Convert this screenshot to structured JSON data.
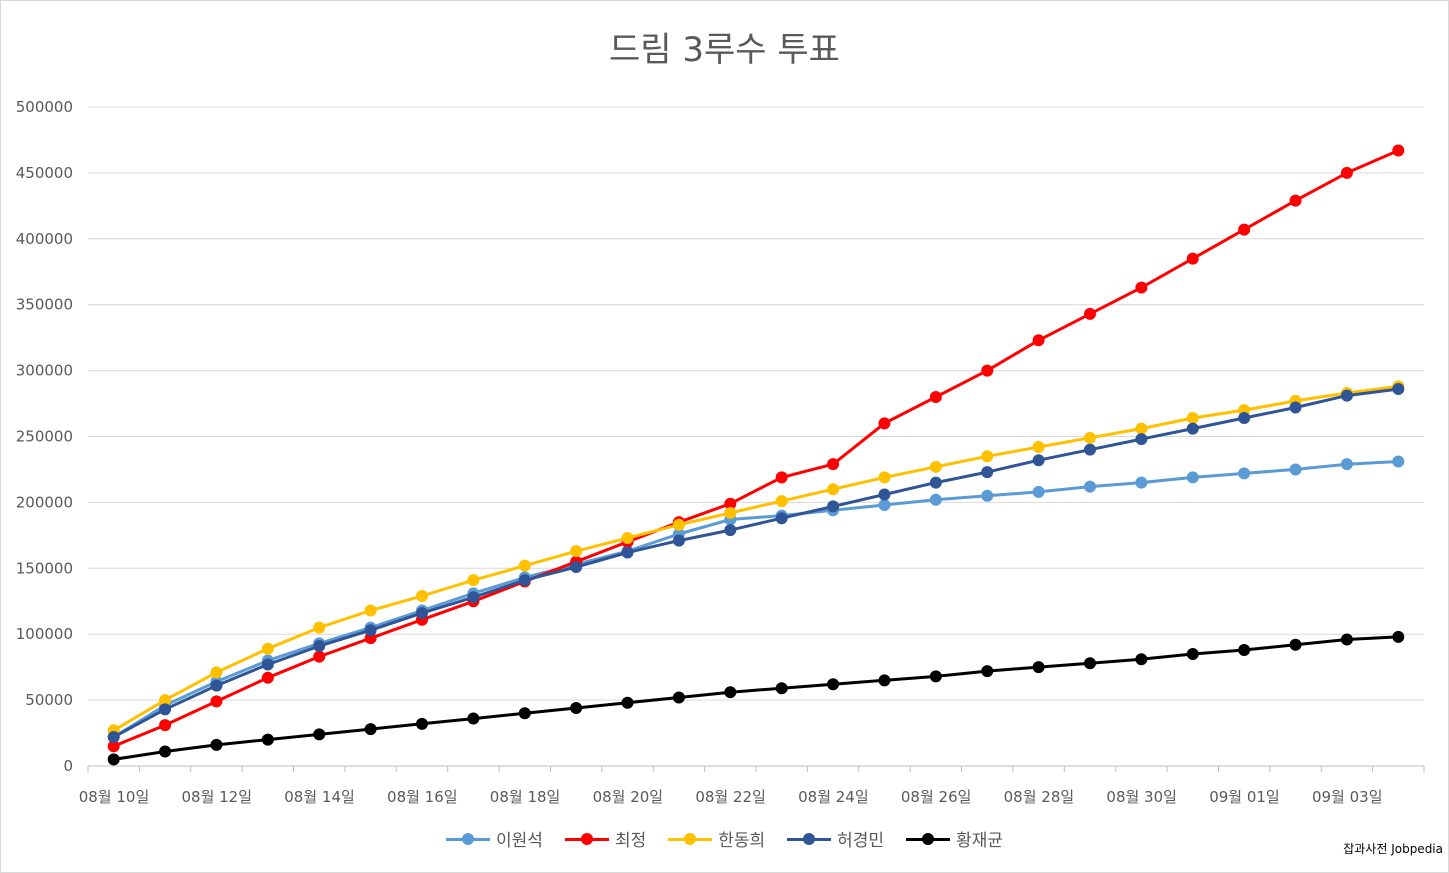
{
  "chart_data": {
    "type": "line",
    "title": "드림 3루수 투표",
    "credit": "잡과사전 Jobpedia",
    "ylim": [
      0,
      500000
    ],
    "y_ticks": [
      "500000",
      "450000",
      "400000",
      "350000",
      "300000",
      "250000",
      "200000",
      "150000",
      "100000",
      "50000",
      "0"
    ],
    "x_tick_labels": [
      "08월 10일",
      "08월 12일",
      "08월 14일",
      "08월 16일",
      "08월 18일",
      "08월 20일",
      "08월 22일",
      "08월 24일",
      "08월 26일",
      "08월 28일",
      "08월 30일",
      "09월 01일",
      "09월 03일"
    ],
    "categories": [
      "08/10",
      "08/11",
      "08/12",
      "08/13",
      "08/14",
      "08/15",
      "08/16",
      "08/17",
      "08/18",
      "08/19",
      "08/20",
      "08/21",
      "08/22",
      "08/23",
      "08/24",
      "08/25",
      "08/26",
      "08/27",
      "08/28",
      "08/29",
      "08/30",
      "08/31",
      "09/01",
      "09/02",
      "09/03",
      "09/04"
    ],
    "grid": true,
    "legend_position": "bottom",
    "series": [
      {
        "name": "이원석",
        "color": "#5b9bd5",
        "values": [
          22000,
          46000,
          64000,
          80000,
          93000,
          105000,
          118000,
          131000,
          143000,
          153000,
          163000,
          176000,
          187000,
          190000,
          194000,
          198000,
          202000,
          205000,
          208000,
          212000,
          215000,
          219000,
          222000,
          225000,
          229000,
          231000
        ]
      },
      {
        "name": "최정",
        "color": "#ff0000",
        "values": [
          15000,
          31000,
          49000,
          67000,
          83000,
          97000,
          111000,
          125000,
          140000,
          155000,
          170000,
          185000,
          199000,
          219000,
          229000,
          260000,
          280000,
          300000,
          323000,
          343000,
          363000,
          385000,
          407000,
          429000,
          450000,
          467000
        ]
      },
      {
        "name": "한동희",
        "color": "#ffc000",
        "values": [
          27000,
          50000,
          71000,
          89000,
          105000,
          118000,
          129000,
          141000,
          152000,
          163000,
          173000,
          183000,
          192000,
          201000,
          210000,
          219000,
          227000,
          235000,
          242000,
          249000,
          256000,
          264000,
          270000,
          277000,
          283000,
          288000
        ]
      },
      {
        "name": "허경민",
        "color": "#2f5597",
        "values": [
          22000,
          43000,
          61000,
          77000,
          91000,
          103000,
          116000,
          128000,
          141000,
          151000,
          162000,
          171000,
          179000,
          188000,
          197000,
          206000,
          215000,
          223000,
          232000,
          240000,
          248000,
          256000,
          264000,
          272000,
          281000,
          286000
        ]
      },
      {
        "name": "황재균",
        "color": "#000000",
        "values": [
          5000,
          11000,
          16000,
          20000,
          24000,
          28000,
          32000,
          36000,
          40000,
          44000,
          48000,
          52000,
          56000,
          59000,
          62000,
          65000,
          68000,
          72000,
          75000,
          78000,
          81000,
          85000,
          88000,
          92000,
          96000,
          98000
        ]
      }
    ]
  }
}
